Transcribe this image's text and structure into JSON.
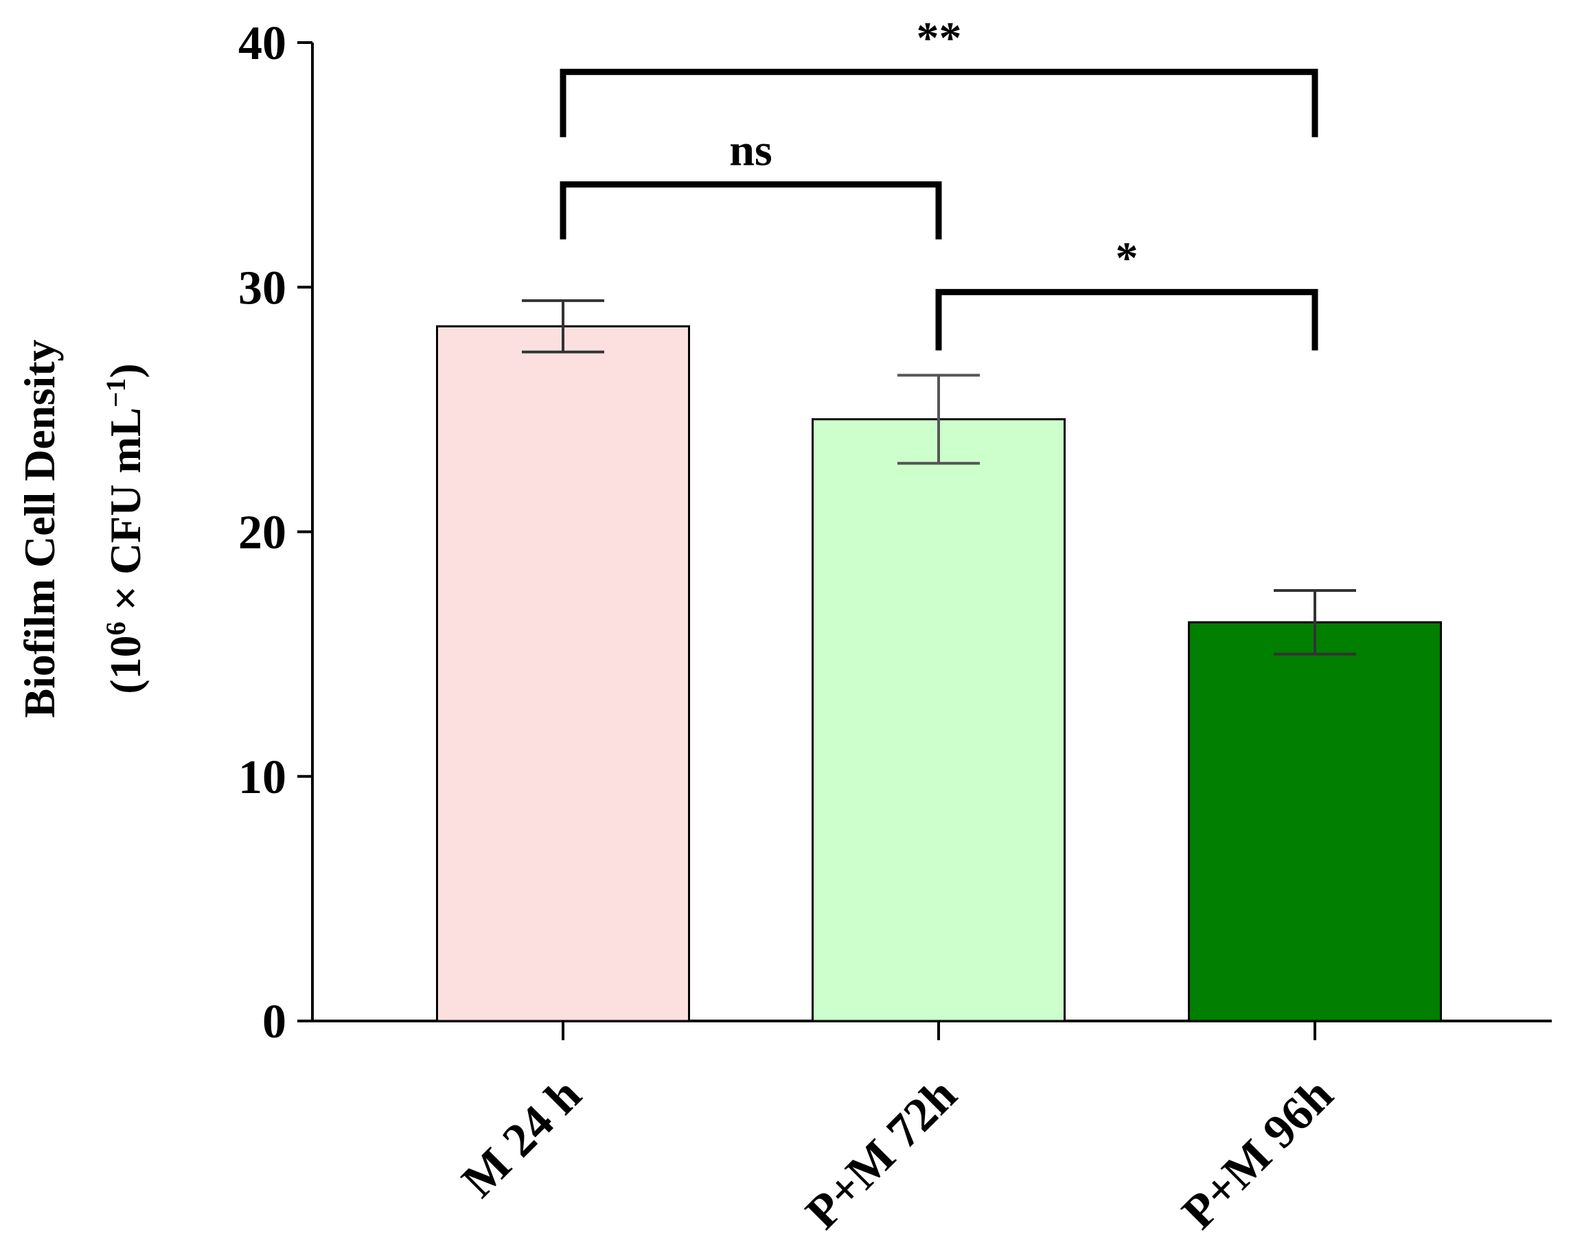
{
  "chart_data": {
    "type": "bar",
    "categories": [
      "M 24 h",
      "P+M 72h",
      "P+M 96h"
    ],
    "values": [
      28.4,
      24.6,
      16.3
    ],
    "error": [
      1.05,
      1.8,
      1.3
    ],
    "colors": [
      "#fce0e0",
      "#ccffcc",
      "#007f00"
    ],
    "ylim": [
      0,
      40
    ],
    "yticks": [
      0,
      10,
      20,
      30,
      40
    ],
    "ylabel": {
      "line1": "Biofilm Cell Density",
      "line2_prefix": "(10",
      "line2_sup1": "6",
      "line2_mid": " × CFU mL",
      "line2_sup2": "−1",
      "line2_suffix": ")"
    },
    "significance": [
      {
        "from": 0,
        "to": 2,
        "label": "**",
        "y": 38.8
      },
      {
        "from": 0,
        "to": 1,
        "label": "ns",
        "y": 34.2
      },
      {
        "from": 1,
        "to": 2,
        "label": "*",
        "y": 29.8
      }
    ]
  }
}
